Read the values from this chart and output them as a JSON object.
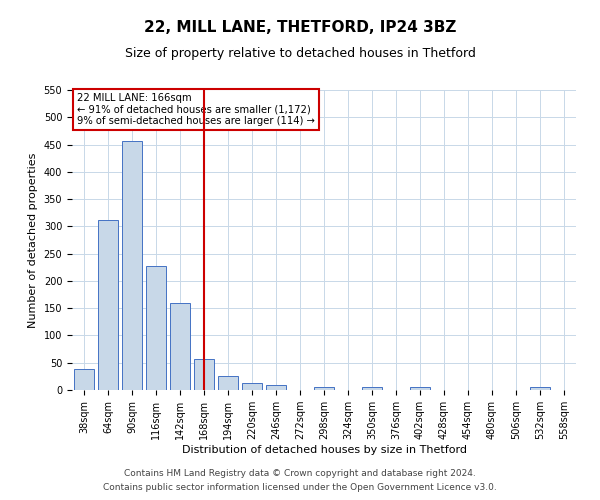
{
  "title1": "22, MILL LANE, THETFORD, IP24 3BZ",
  "title2": "Size of property relative to detached houses in Thetford",
  "xlabel": "Distribution of detached houses by size in Thetford",
  "ylabel": "Number of detached properties",
  "categories": [
    "38sqm",
    "64sqm",
    "90sqm",
    "116sqm",
    "142sqm",
    "168sqm",
    "194sqm",
    "220sqm",
    "246sqm",
    "272sqm",
    "298sqm",
    "324sqm",
    "350sqm",
    "376sqm",
    "402sqm",
    "428sqm",
    "454sqm",
    "480sqm",
    "506sqm",
    "532sqm",
    "558sqm"
  ],
  "values": [
    38,
    311,
    457,
    228,
    160,
    57,
    25,
    13,
    9,
    0,
    5,
    0,
    5,
    0,
    5,
    0,
    0,
    0,
    0,
    5,
    0
  ],
  "bar_color": "#c8d8e8",
  "bar_edge_color": "#4472c4",
  "vline_x": 5,
  "vline_color": "#cc0000",
  "annotation_text": "22 MILL LANE: 166sqm\n← 91% of detached houses are smaller (1,172)\n9% of semi-detached houses are larger (114) →",
  "annotation_box_color": "#ffffff",
  "annotation_box_edge": "#cc0000",
  "ylim": [
    0,
    550
  ],
  "yticks": [
    0,
    50,
    100,
    150,
    200,
    250,
    300,
    350,
    400,
    450,
    500,
    550
  ],
  "footer1": "Contains HM Land Registry data © Crown copyright and database right 2024.",
  "footer2": "Contains public sector information licensed under the Open Government Licence v3.0.",
  "bg_color": "#ffffff",
  "grid_color": "#c8d8e8",
  "title1_fontsize": 11,
  "title2_fontsize": 9,
  "axis_label_fontsize": 8,
  "tick_fontsize": 7,
  "footer_fontsize": 6.5
}
